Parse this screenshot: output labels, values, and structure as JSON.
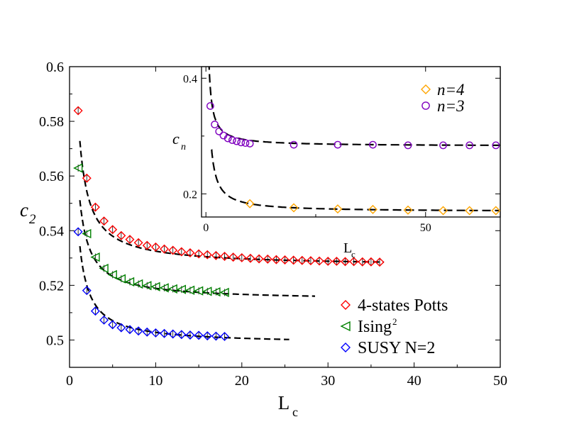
{
  "chart_data": [
    {
      "type": "scatter",
      "name": "main",
      "xlabel": "L",
      "xlabel_sub": "c",
      "ylabel": "c",
      "ylabel_sub": "2",
      "xlim": [
        0,
        50
      ],
      "ylim": [
        0.49,
        0.6
      ],
      "xticks": [
        0,
        10,
        20,
        30,
        40,
        50
      ],
      "yticks": [
        0.5,
        0.52,
        0.54,
        0.56,
        0.58,
        0.6
      ],
      "ytick_labels": [
        "0.5",
        "0.52",
        "0.54",
        "0.56",
        "0.58",
        "0.6"
      ],
      "legend_position": "bottom-right",
      "series": [
        {
          "name": "4-states Potts",
          "label": "4-states Potts",
          "marker": "diamond",
          "color": "#ff0000",
          "x": [
            1,
            2,
            3,
            4,
            5,
            6,
            7,
            8,
            9,
            10,
            11,
            12,
            13,
            14,
            15,
            16,
            17,
            18,
            19,
            20,
            21,
            22,
            23,
            24,
            25,
            26,
            27,
            28,
            29,
            30,
            31,
            32,
            33,
            34,
            35,
            36
          ],
          "y": [
            0.5839,
            0.5592,
            0.5486,
            0.5435,
            0.5404,
            0.5382,
            0.5368,
            0.5356,
            0.5346,
            0.534,
            0.5333,
            0.5328,
            0.5323,
            0.5319,
            0.5315,
            0.5312,
            0.5309,
            0.5306,
            0.5303,
            0.5301,
            0.5299,
            0.5297,
            0.5296,
            0.5294,
            0.5293,
            0.5292,
            0.5291,
            0.529,
            0.5289,
            0.5288,
            0.5288,
            0.5287,
            0.5287,
            0.5286,
            0.5286,
            0.5285
          ],
          "fit": {
            "x": [
              1.2,
              36.5
            ],
            "a": 0.527,
            "b": 0.055,
            "p": 1.0
          }
        },
        {
          "name": "Ising^2",
          "label": "Ising",
          "label_sup": "2",
          "marker": "triangle-left",
          "color": "#008000",
          "x": [
            1,
            2,
            3,
            4,
            5,
            6,
            7,
            8,
            9,
            10,
            11,
            12,
            13,
            14,
            15,
            16,
            17,
            18
          ],
          "y": [
            0.5629,
            0.5389,
            0.5303,
            0.5262,
            0.5239,
            0.5224,
            0.5213,
            0.5205,
            0.5199,
            0.5195,
            0.5191,
            0.5187,
            0.5185,
            0.5182,
            0.518,
            0.5178,
            0.5176,
            0.5174
          ],
          "fit": {
            "x": [
              1.2,
              28.5
            ],
            "a": 0.5145,
            "b": 0.044,
            "p": 1.0
          }
        },
        {
          "name": "SUSY N=2",
          "label": "SUSY N=2",
          "marker": "diamond",
          "color": "#0000ff",
          "x": [
            1,
            2,
            3,
            4,
            5,
            6,
            7,
            8,
            9,
            10,
            11,
            12,
            13,
            14,
            15,
            16,
            17,
            18
          ],
          "y": [
            0.5396,
            0.5181,
            0.5106,
            0.5073,
            0.5056,
            0.5045,
            0.5038,
            0.5033,
            0.5029,
            0.5026,
            0.5024,
            0.5022,
            0.502,
            0.5018,
            0.5017,
            0.5015,
            0.5014,
            0.5013
          ],
          "fit": {
            "x": [
              1.2,
              25.5
            ],
            "a": 0.4985,
            "b": 0.043,
            "p": 1.0
          }
        }
      ]
    },
    {
      "type": "scatter",
      "name": "inset",
      "xlabel": "L",
      "xlabel_sub": "c",
      "ylabel": "c",
      "ylabel_sub": "n",
      "xlim": [
        -1,
        67
      ],
      "ylim": [
        0.16,
        0.42
      ],
      "xticks": [
        0,
        50
      ],
      "yticks": [
        0.2,
        0.4
      ],
      "ytick_labels": [
        "0.2",
        "0.4"
      ],
      "legend_position": "top-right",
      "series": [
        {
          "name": "n=4",
          "label": "n=4",
          "marker": "diamond",
          "color": "#ffa500",
          "x": [
            10,
            20,
            30,
            38,
            46,
            54,
            60,
            66
          ],
          "y": [
            0.183,
            0.176,
            0.174,
            0.173,
            0.172,
            0.171,
            0.171,
            0.171
          ],
          "fit": {
            "x": [
              1.3,
              67
            ],
            "a": 0.169,
            "b": 0.14,
            "p": 1.0
          }
        },
        {
          "name": "n=3",
          "label": "n=3",
          "marker": "circle",
          "color": "#7f00bf",
          "x": [
            1,
            2,
            3,
            4,
            5,
            6,
            7,
            8,
            9,
            10,
            20,
            30,
            38,
            46,
            54,
            60,
            66
          ],
          "y": [
            0.352,
            0.32,
            0.308,
            0.301,
            0.296,
            0.293,
            0.291,
            0.289,
            0.288,
            0.287,
            0.285,
            0.285,
            0.285,
            0.284,
            0.284,
            0.284,
            0.284
          ],
          "fit": {
            "x": [
              0.4,
              67
            ],
            "a": 0.2825,
            "b": 0.1,
            "p": 1.0
          }
        }
      ]
    }
  ]
}
